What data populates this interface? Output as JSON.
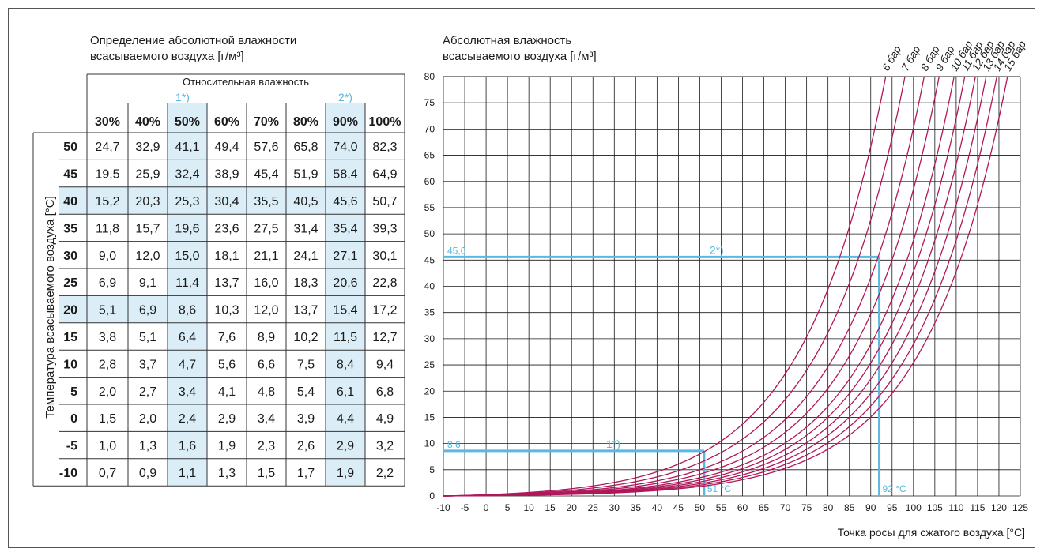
{
  "table": {
    "title_line1": "Определение абсолютной влажности",
    "title_line2": "всасываемого воздуха [г/м³]",
    "rh_header": "Относительная влажность",
    "side_label": "Температура всасываемого воздуха [°C]",
    "marker1": "1*)",
    "marker2": "2*)",
    "columns": [
      "30%",
      "40%",
      "50%",
      "60%",
      "70%",
      "80%",
      "90%",
      "100%"
    ],
    "rows": [
      {
        "t": "50",
        "v": [
          "24,7",
          "32,9",
          "41,1",
          "49,4",
          "57,6",
          "65,8",
          "74,0",
          "82,3"
        ]
      },
      {
        "t": "45",
        "v": [
          "19,5",
          "25,9",
          "32,4",
          "38,9",
          "45,4",
          "51,9",
          "58,4",
          "64,9"
        ]
      },
      {
        "t": "40",
        "v": [
          "15,2",
          "20,3",
          "25,3",
          "30,4",
          "35,5",
          "40,5",
          "45,6",
          "50,7"
        ]
      },
      {
        "t": "35",
        "v": [
          "11,8",
          "15,7",
          "19,6",
          "23,6",
          "27,5",
          "31,4",
          "35,4",
          "39,3"
        ]
      },
      {
        "t": "30",
        "v": [
          "9,0",
          "12,0",
          "15,0",
          "18,1",
          "21,1",
          "24,1",
          "27,1",
          "30,1"
        ]
      },
      {
        "t": "25",
        "v": [
          "6,9",
          "9,1",
          "11,4",
          "13,7",
          "16,0",
          "18,3",
          "20,6",
          "22,8"
        ]
      },
      {
        "t": "20",
        "v": [
          "5,1",
          "6,9",
          "8,6",
          "10,3",
          "12,0",
          "13,7",
          "15,4",
          "17,2"
        ]
      },
      {
        "t": "15",
        "v": [
          "3,8",
          "5,1",
          "6,4",
          "7,6",
          "8,9",
          "10,2",
          "11,5",
          "12,7"
        ]
      },
      {
        "t": "10",
        "v": [
          "2,8",
          "3,7",
          "4,7",
          "5,6",
          "6,6",
          "7,5",
          "8,4",
          "9,4"
        ]
      },
      {
        "t": "5",
        "v": [
          "2,0",
          "2,7",
          "3,4",
          "4,1",
          "4,8",
          "5,4",
          "6,1",
          "6,8"
        ]
      },
      {
        "t": "0",
        "v": [
          "1,5",
          "2,0",
          "2,4",
          "2,9",
          "3,4",
          "3,9",
          "4,4",
          "4,9"
        ]
      },
      {
        "t": "-5",
        "v": [
          "1,0",
          "1,3",
          "1,6",
          "1,9",
          "2,3",
          "2,6",
          "2,9",
          "3,2"
        ]
      },
      {
        "t": "-10",
        "v": [
          "0,7",
          "0,9",
          "1,1",
          "1,3",
          "1,5",
          "1,7",
          "1,9",
          "2,2"
        ]
      }
    ],
    "highlight_columns": [
      "50%",
      "90%"
    ],
    "highlight_rows": [
      "40",
      "20"
    ]
  },
  "chart_data": {
    "type": "line",
    "title_line1": "Абсолютная влажность",
    "title_line2": "всасываемого воздуха [г/м³]",
    "xlabel": "Точка росы для сжатого воздуха [°C]",
    "xlim": [
      -10,
      125
    ],
    "ylim": [
      0,
      80
    ],
    "x_ticks": [
      -10,
      -5,
      0,
      5,
      10,
      15,
      20,
      25,
      30,
      35,
      40,
      45,
      50,
      55,
      60,
      65,
      70,
      75,
      80,
      85,
      90,
      95,
      100,
      105,
      110,
      115,
      120,
      125
    ],
    "y_ticks": [
      0,
      5,
      10,
      15,
      20,
      25,
      30,
      35,
      40,
      45,
      50,
      55,
      60,
      65,
      70,
      75,
      80
    ],
    "grid": true,
    "series": [
      {
        "name": "6 бар",
        "x_at_80": 93.5
      },
      {
        "name": "7 бар",
        "x_at_80": 98.0
      },
      {
        "name": "8 бар",
        "x_at_80": 102.5
      },
      {
        "name": "9 бар",
        "x_at_80": 106.0
      },
      {
        "name": "10 бар",
        "x_at_80": 109.5
      },
      {
        "name": "11 бар",
        "x_at_80": 112.0
      },
      {
        "name": "12 бар",
        "x_at_80": 114.5
      },
      {
        "name": "13 бар",
        "x_at_80": 117.0
      },
      {
        "name": "14 бар",
        "x_at_80": 119.5
      },
      {
        "name": "15 бар",
        "x_at_80": 122.0
      }
    ],
    "annotations": [
      {
        "label": "1*)",
        "y": 8.6,
        "x": 51,
        "y_text": "8,6",
        "x_text": "51 °C"
      },
      {
        "label": "2*)",
        "y": 45.6,
        "x": 92,
        "y_text": "45,6",
        "x_text": "92 °C"
      }
    ]
  },
  "colors": {
    "curve": "#b0175a",
    "highlight": "#59b9e0",
    "highlight_fill": "#dbeef8",
    "grid": "#1a1a1a"
  }
}
